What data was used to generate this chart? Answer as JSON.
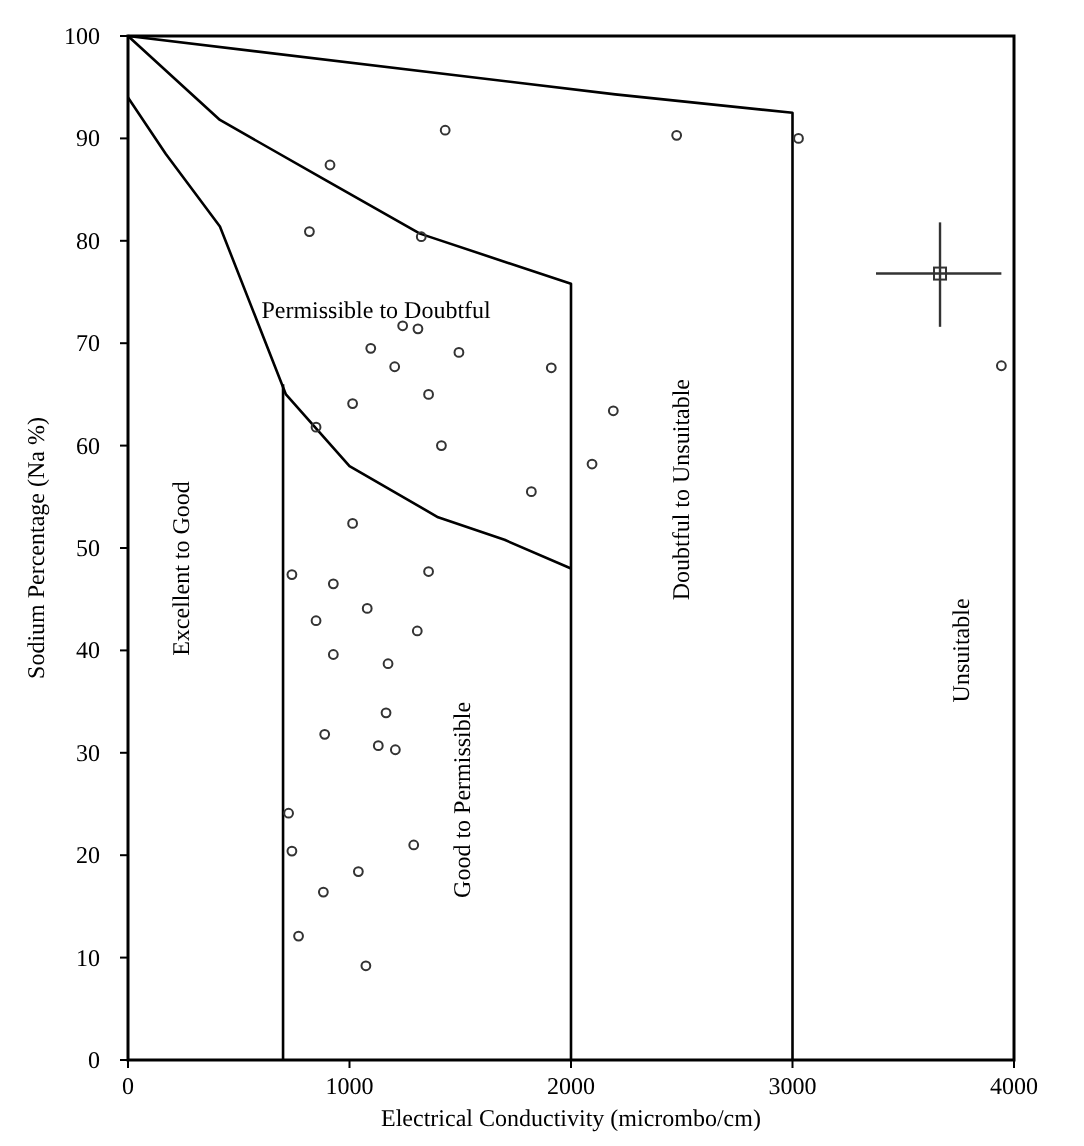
{
  "chart_data": {
    "type": "scatter",
    "xlabel": "Electrical Conductivity (micrombo/cm)",
    "ylabel": "Sodium Percentage (Na %)",
    "xlim": [
      0,
      4000
    ],
    "ylim": [
      0,
      100
    ],
    "xticks": [
      0,
      1000,
      2000,
      3000,
      4000
    ],
    "yticks": [
      0,
      10,
      20,
      30,
      40,
      50,
      60,
      70,
      80,
      90,
      100
    ],
    "grid": false,
    "marker": "circle",
    "annotations": [
      "Permissible to Doubtful",
      "Excellent to Good",
      "Good to Permissible",
      "Doubtful to Unsuitable",
      "Unsuitable"
    ],
    "series": [
      {
        "type": "line",
        "marker": "none",
        "color": "#000000",
        "x": [
          0,
          2200,
          3000,
          3000
        ],
        "values": [
          100,
          94.3,
          92.5,
          0
        ]
      },
      {
        "type": "line",
        "marker": "none",
        "color": "#000000",
        "x": [
          0,
          415,
          894,
          1318,
          2000,
          2000
        ],
        "values": [
          100,
          91.8,
          85.9,
          80.7,
          75.8,
          0
        ]
      },
      {
        "type": "line",
        "marker": "none",
        "color": "#000000",
        "x": [
          0,
          170,
          415,
          713,
          1000,
          1400,
          1700,
          2000
        ],
        "values": [
          94,
          88.5,
          81.4,
          65,
          58,
          53,
          50.8,
          48
        ]
      },
      {
        "type": "line",
        "marker": "none",
        "color": "#000000",
        "x": [
          700,
          700
        ],
        "values": [
          66,
          0
        ]
      },
      {
        "color": "#333333",
        "x": [
          1432,
          912,
          819,
          1324,
          1240,
          1309,
          1096,
          1494,
          1204,
          1911,
          1357,
          1014,
          2191,
          849,
          1415,
          2095,
          1821,
          1014,
          2477,
          3027,
          3943,
          740,
          927,
          1357,
          1080,
          849,
          1306,
          927,
          1174,
          1165,
          888,
          1130,
          1207,
          725,
          740,
          1290,
          1040,
          882,
          770,
          1074
        ],
        "values": [
          90.8,
          87.4,
          80.9,
          80.4,
          71.7,
          71.4,
          69.5,
          69.1,
          67.7,
          67.6,
          65,
          64.1,
          63.4,
          61.8,
          60,
          58.2,
          55.5,
          52.4,
          90.3,
          90,
          67.8,
          47.4,
          46.5,
          47.7,
          44.1,
          42.9,
          41.9,
          39.6,
          38.7,
          33.9,
          31.8,
          30.7,
          30.3,
          24.1,
          20.4,
          21,
          18.4,
          16.4,
          12.1,
          9.2
        ]
      },
      {
        "type": "scatter",
        "color": "#333333",
        "marker": "square",
        "x": [
          3666
        ],
        "values": [
          76.8
        ],
        "errors": [
          [
            71.6,
            81.8
          ]
        ],
        "xerrors": [
          [
            3377,
            3943
          ]
        ]
      }
    ]
  }
}
